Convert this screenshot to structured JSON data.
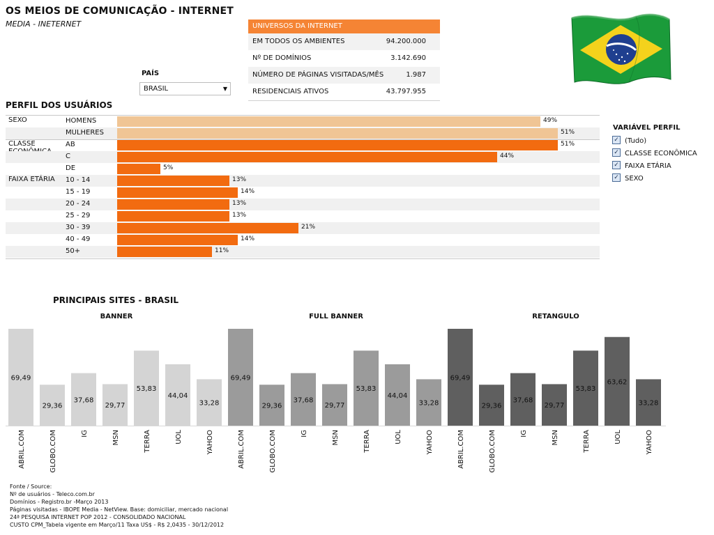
{
  "header": {
    "title": "OS MEIOS DE COMUNICAÇÃO - INTERNET",
    "subtitle": "MEDIA - INETERNET"
  },
  "country": {
    "label": "PAÍS",
    "selected": "BRASIL"
  },
  "universe": {
    "header": "UNIVERSOS DA INTERNET",
    "rows": [
      {
        "label": "EM TODOS OS AMBIENTES",
        "value": "94.200.000"
      },
      {
        "label": "Nº DE DOMÍNIOS",
        "value": "3.142.690"
      },
      {
        "label": "NÚMERO DE PÁGINAS VISITADAS/MÊS",
        "value": "1.987"
      },
      {
        "label": "RESIDENCIAIS ATIVOS",
        "value": "43.797.955"
      }
    ]
  },
  "profile": {
    "title": "PERFIL DOS USUÁRIOS",
    "colors": {
      "light": "#f0c595",
      "dark": "#f26b10"
    },
    "groups": [
      {
        "name": "SEXO",
        "rows": [
          {
            "cat": "HOMENS",
            "value": 49,
            "label": "49%",
            "color": "light"
          },
          {
            "cat": "MULHERES",
            "value": 51,
            "label": "51%",
            "color": "light"
          }
        ]
      },
      {
        "name": "CLASSE ECONÔMICA",
        "rows": [
          {
            "cat": "AB",
            "value": 51,
            "label": "51%",
            "color": "dark"
          },
          {
            "cat": "C",
            "value": 44,
            "label": "44%",
            "color": "dark"
          },
          {
            "cat": "DE",
            "value": 5,
            "label": "5%",
            "color": "dark"
          }
        ]
      },
      {
        "name": "FAIXA ETÁRIA",
        "rows": [
          {
            "cat": "10 - 14",
            "value": 13,
            "label": "13%",
            "color": "dark"
          },
          {
            "cat": "15 - 19",
            "value": 14,
            "label": "14%",
            "color": "dark"
          },
          {
            "cat": "20 - 24",
            "value": 13,
            "label": "13%",
            "color": "dark"
          },
          {
            "cat": "25 - 29",
            "value": 13,
            "label": "13%",
            "color": "dark"
          },
          {
            "cat": "30 - 39",
            "value": 21,
            "label": "21%",
            "color": "dark"
          },
          {
            "cat": "40 - 49",
            "value": 14,
            "label": "14%",
            "color": "dark"
          },
          {
            "cat": "50+",
            "value": 11,
            "label": "11%",
            "color": "dark"
          }
        ]
      }
    ]
  },
  "variable_filter": {
    "title": "VARIÁVEL PERFIL",
    "items": [
      "(Tudo)",
      "CLASSE ECONÔMICA",
      "FAIXA ETÁRIA",
      "SEXO"
    ],
    "checked": [
      true,
      true,
      true,
      true
    ]
  },
  "sites": {
    "title": "PRINCIPAIS SITES - BRASIL"
  },
  "chart_data": {
    "type": "bar",
    "categories": [
      "ABRIL.COM",
      "GLOBO.COM",
      "IG",
      "MSN",
      "TERRA",
      "UOL",
      "YAHOO"
    ],
    "panels": [
      {
        "name": "BANNER",
        "color": "#d4d4d4",
        "values": [
          69.49,
          29.36,
          37.68,
          29.77,
          53.83,
          44.04,
          33.28
        ],
        "labels": [
          "69,49",
          "29,36",
          "37,68",
          "29,77",
          "53,83",
          "44,04",
          "33,28"
        ]
      },
      {
        "name": "FULL BANNER",
        "color": "#9b9b9b",
        "values": [
          69.49,
          29.36,
          37.68,
          29.77,
          53.83,
          44.04,
          33.28
        ],
        "labels": [
          "69,49",
          "29,36",
          "37,68",
          "29,77",
          "53,83",
          "44,04",
          "33,28"
        ]
      },
      {
        "name": "RETANGULO",
        "color": "#5f5f5f",
        "values": [
          69.49,
          29.36,
          37.68,
          29.77,
          53.83,
          63.62,
          33.28
        ],
        "labels": [
          "69,49",
          "29,36",
          "37,68",
          "29,77",
          "53,83",
          "63,62",
          "33,28"
        ]
      }
    ]
  },
  "source": {
    "lines": [
      "Fonte / Source:",
      "Nº de usuários - Teleco.com.br",
      "Domínios - Registro.br  -Março 2013",
      "Páginas visitadas - IBOPE Media - NetView. Base: domiciliar, mercado nacional",
      "24ª PESQUISA INTERNET POP 2012 - CONSOLIDADO NACIONAL",
      "CUSTO CPM_Tabela vigente em Março/11 Taxa US$ - R$ 2,0435 - 30/12/2012"
    ]
  }
}
